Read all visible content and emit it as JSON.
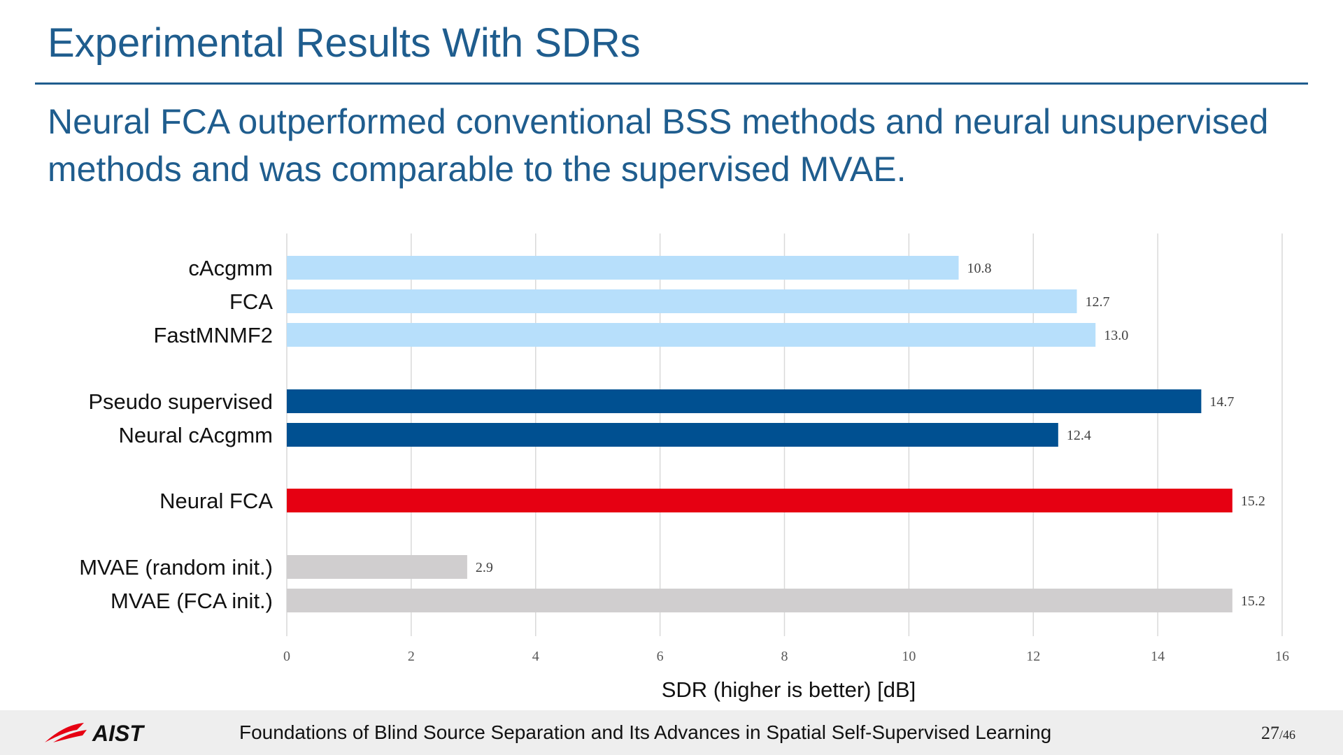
{
  "slide": {
    "title": "Experimental Results With SDRs",
    "subtitle": "Neural FCA outperformed conventional BSS methods and neural unsupervised methods and was comparable to the supervised MVAE."
  },
  "chart_data": {
    "type": "bar",
    "orientation": "horizontal",
    "categories": [
      "cAcgmm",
      "FCA",
      "FastMNMF2",
      "Pseudo supervised",
      "Neural cAcgmm",
      "Neural FCA",
      "MVAE (random init.)",
      "MVAE (FCA init.)"
    ],
    "values": [
      10.8,
      12.7,
      13.0,
      14.7,
      12.4,
      15.2,
      2.9,
      15.2
    ],
    "value_labels": [
      "10.8",
      "12.7",
      "13.0",
      "14.7",
      "12.4",
      "15.2",
      "2.9",
      "15.2"
    ],
    "groups": [
      {
        "members": [
          0,
          1,
          2
        ],
        "color": "#b7dffb"
      },
      {
        "members": [
          3,
          4
        ],
        "color": "#005091"
      },
      {
        "members": [
          5
        ],
        "color": "#e60012"
      },
      {
        "members": [
          6,
          7
        ],
        "color": "#d0cecf"
      }
    ],
    "xlabel": "SDR (higher is better) [dB]",
    "xlim": [
      0,
      16
    ],
    "xticks": [
      "0",
      "2",
      "4",
      "6",
      "8",
      "10",
      "12",
      "14",
      "16"
    ],
    "grid": "vertical",
    "legend": "none"
  },
  "footer": {
    "logo_text": "AIST",
    "title": "Foundations of Blind Source Separation and Its Advances in Spatial Self-Supervised Learning",
    "page_current": "27",
    "page_total": "/46"
  },
  "colors": {
    "accent": "#1f5d8e",
    "grid": "#d9d9d9"
  }
}
